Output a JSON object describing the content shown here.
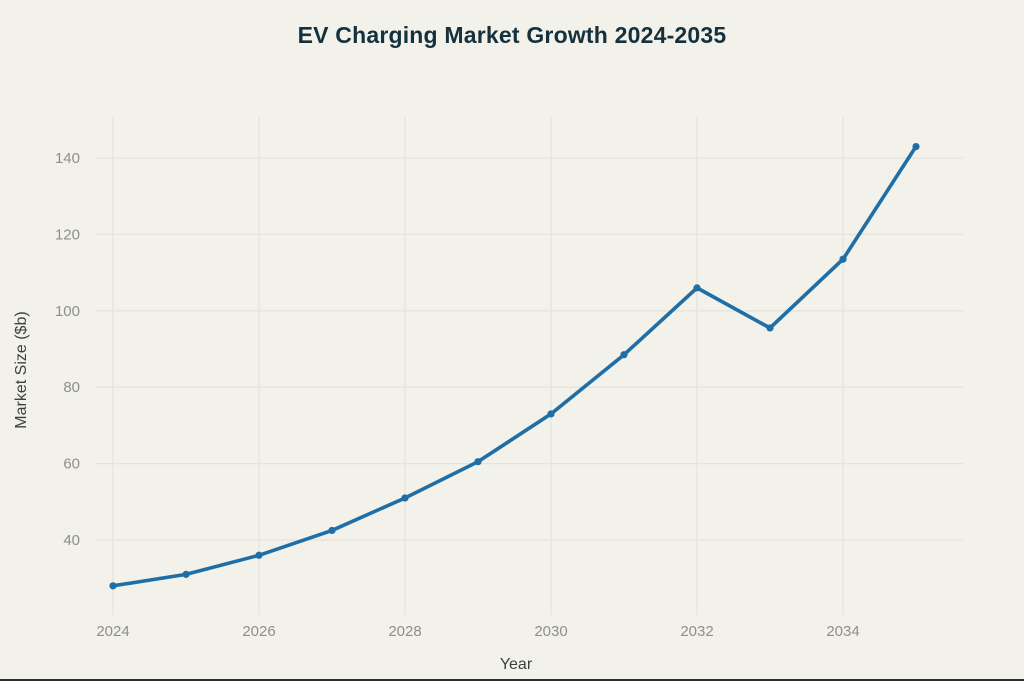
{
  "chart_data": {
    "type": "line",
    "title": "EV Charging Market Growth 2024-2035",
    "xlabel": "Year",
    "ylabel": "Market Size ($b)",
    "x": [
      2024,
      2025,
      2026,
      2027,
      2028,
      2029,
      2030,
      2031,
      2032,
      2033,
      2034,
      2035
    ],
    "series": [
      {
        "name": "Market Size ($b)",
        "values": [
          28,
          31,
          36,
          42.5,
          51,
          60.5,
          73,
          88.5,
          106,
          95.5,
          113.5,
          143
        ]
      }
    ],
    "x_ticks": [
      2024,
      2026,
      2028,
      2030,
      2032,
      2034
    ],
    "x_tick_labels": [
      "2024",
      "2026",
      "2028",
      "2030",
      "2032",
      "2034"
    ],
    "y_ticks": [
      40,
      60,
      80,
      100,
      120,
      140
    ],
    "y_tick_labels": [
      "40",
      "60",
      "80",
      "100",
      "120",
      "140"
    ],
    "xlim": [
      2023.75,
      2035.65
    ],
    "ylim": [
      20,
      151
    ],
    "grid": true,
    "legend": "none",
    "colors": {
      "background": "#f2f1ea",
      "line": "#1f6fa6",
      "marker": "#1f6fa6",
      "gridline": "#e4e3dc",
      "tick_label": "#8f8f8a",
      "title": "#15313d",
      "axis_title": "#39423f",
      "bottom_edge": "#263339"
    }
  }
}
